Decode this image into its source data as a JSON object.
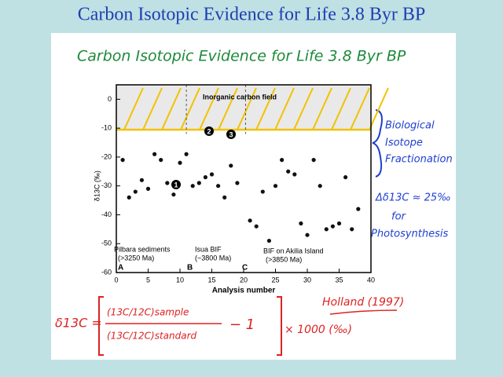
{
  "title": "Carbon Isotopic Evidence for Life 3.8 Byr BP",
  "chart_data": {
    "type": "scatter",
    "title": "Carbon Isotopic Evidence for Life 3.8 Byr BP",
    "x_label": "Analysis number",
    "y_label": "δ13C (‰)",
    "x": [
      1,
      2,
      3,
      4,
      5,
      6,
      7,
      8,
      9,
      10,
      11,
      12,
      13,
      14,
      15,
      16,
      17,
      18,
      19,
      21,
      22,
      23,
      24,
      25,
      26,
      27,
      28,
      29,
      30,
      31,
      32,
      33,
      34,
      35,
      36,
      37,
      38
    ],
    "values": [
      -21,
      -34,
      -32,
      -28,
      -31,
      -19,
      -21,
      -29,
      -33,
      -22,
      -19,
      -30,
      -29,
      -27,
      -26,
      -30,
      -34,
      -23,
      -29,
      -42,
      -44,
      -32,
      -49,
      -30,
      -21,
      -25,
      -26,
      -43,
      -47,
      -21,
      -30,
      -45,
      -44,
      -43,
      -27,
      -45,
      -38
    ],
    "color": "#111111",
    "xlim": [
      0,
      40
    ],
    "ylim": [
      -60,
      5
    ],
    "xticks": [
      0,
      5,
      10,
      15,
      20,
      25,
      30,
      35,
      40
    ],
    "yticks": [
      0,
      -10,
      -20,
      -30,
      -40,
      -50,
      -60
    ],
    "annotations": [
      "Inorganic carbon field",
      "Pilbara sediments",
      "(>3250 Ma)",
      "Isua BIF",
      "(~3800 Ma)",
      "BIF on Akilia Island",
      "(>3850 Ma)",
      "A",
      "B",
      "C",
      "1",
      "2",
      "3"
    ]
  },
  "notes": {
    "bracket_text": [
      "Biological",
      "Isotope",
      "Fractionation"
    ],
    "photosynthesis": [
      "Δδ13C ≈ 25‰",
      "for",
      "Photosynthesis"
    ],
    "reference": "Holland (1997)",
    "formula": {
      "lhs": "δ13C =",
      "numerator": "(13C/12C)sample",
      "denominator": "(13C/12C)standard",
      "minus": "− 1",
      "factor": "× 1000 (‰)"
    }
  }
}
